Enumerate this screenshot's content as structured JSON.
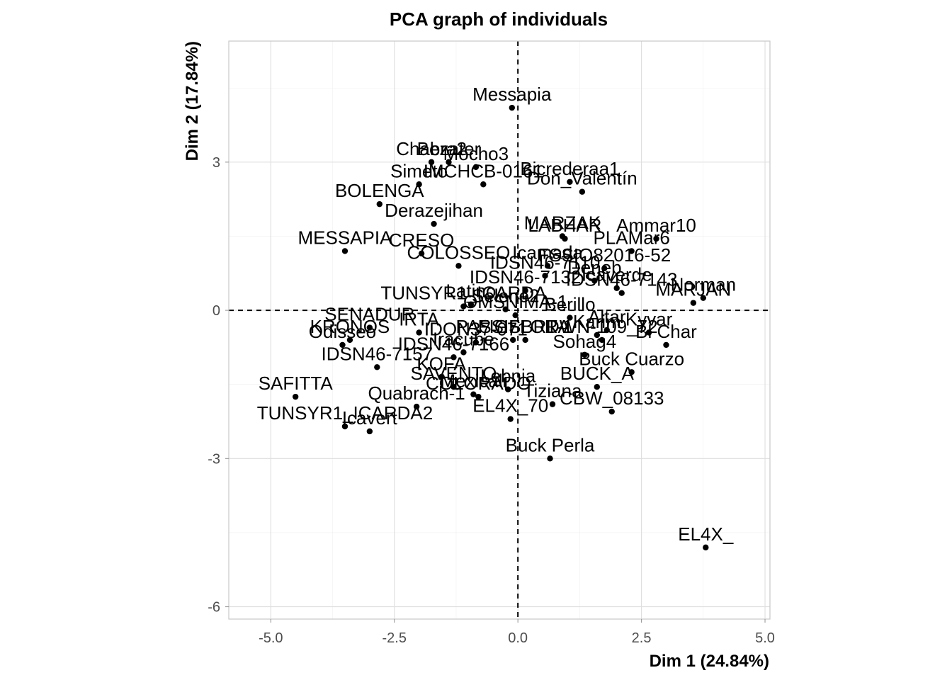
{
  "chart_data": {
    "type": "scatter",
    "title": "PCA graph of individuals",
    "xlabel": "Dim 1 (24.84%)",
    "ylabel": "Dim 2 (17.84%)",
    "xlim": [
      -5.85,
      5.1
    ],
    "ylim": [
      -6.25,
      5.45
    ],
    "x_ticks": [
      -5.0,
      -2.5,
      0.0,
      2.5,
      5.0
    ],
    "x_tick_labels": [
      "-5.0",
      "-2.5",
      "0.0",
      "2.5",
      "5.0"
    ],
    "y_ticks": [
      -6,
      -3,
      0,
      3
    ],
    "y_tick_labels": [
      "-6",
      "-3",
      "0",
      "3"
    ],
    "reference_lines": {
      "x": 0,
      "y": 0
    },
    "grid": true,
    "colors": {
      "points": "#000000",
      "labels": "#000000"
    },
    "points": [
      {
        "label": "Messapia",
        "x": -0.12,
        "y": 4.1
      },
      {
        "label": "Chabra2",
        "x": -1.75,
        "y": 3.0
      },
      {
        "label": "Bezater",
        "x": -1.4,
        "y": 3.0
      },
      {
        "label": "Simeto",
        "x": -2.0,
        "y": 2.55
      },
      {
        "label": "Mocho3",
        "x": -0.85,
        "y": 2.9
      },
      {
        "label": "IMCHCB-0161",
        "x": -0.7,
        "y": 2.55
      },
      {
        "label": "BOLENGA",
        "x": -2.8,
        "y": 2.15
      },
      {
        "label": "Derazejihan",
        "x": -1.7,
        "y": 1.75
      },
      {
        "label": "MESSAPIA",
        "x": -3.5,
        "y": 1.2
      },
      {
        "label": "CRESO",
        "x": -1.95,
        "y": 1.15
      },
      {
        "label": "COLOSSEO",
        "x": -1.2,
        "y": 0.9
      },
      {
        "label": "TUNSYR1_ICARDA",
        "x": -1.1,
        "y": 0.08
      },
      {
        "label": "Latino",
        "x": -0.95,
        "y": 0.12
      },
      {
        "label": "Selene2",
        "x": -0.25,
        "y": 0.02
      },
      {
        "label": "Bicrederaa1",
        "x": 1.05,
        "y": 2.6
      },
      {
        "label": "Don_Valentín",
        "x": 1.3,
        "y": 2.4
      },
      {
        "label": "MARZAK",
        "x": 0.9,
        "y": 1.5
      },
      {
        "label": "LABHAR",
        "x": 0.95,
        "y": 1.45
      },
      {
        "label": "Ammar10",
        "x": 2.8,
        "y": 1.45
      },
      {
        "label": "PLAMar6",
        "x": 2.3,
        "y": 1.2
      },
      {
        "label": "Icamada",
        "x": 0.6,
        "y": 0.9
      },
      {
        "label": "FSSIO82016-52",
        "x": 1.75,
        "y": 0.85
      },
      {
        "label": "IDSN46-7110",
        "x": 0.55,
        "y": 0.7
      },
      {
        "label": "Deneb",
        "x": 1.55,
        "y": 0.6
      },
      {
        "label": "Icaverde",
        "x": 2.0,
        "y": 0.45
      },
      {
        "label": "IDSN46-7132",
        "x": 0.15,
        "y": 0.4
      },
      {
        "label": "Norman",
        "x": 3.75,
        "y": 0.25
      },
      {
        "label": "MARJAN",
        "x": 3.55,
        "y": 0.15
      },
      {
        "label": "IDSN46-7143",
        "x": 2.1,
        "y": 0.35
      },
      {
        "label": "OMSNIMA-1",
        "x": -0.05,
        "y": -0.1
      },
      {
        "label": "Berillo",
        "x": 1.05,
        "y": -0.15
      },
      {
        "label": "Altar",
        "x": 1.8,
        "y": -0.4
      },
      {
        "label": "Karim",
        "x": 1.6,
        "y": -0.5
      },
      {
        "label": "Kyvar",
        "x": 2.65,
        "y": -0.45
      },
      {
        "label": "PASSIFLORA",
        "x": -0.1,
        "y": -0.6
      },
      {
        "label": "FIGSBRT-1",
        "x": 0.15,
        "y": -0.6
      },
      {
        "label": "DWN-109_72",
        "x": 1.7,
        "y": -0.6
      },
      {
        "label": "Sohag4",
        "x": 1.35,
        "y": -0.9
      },
      {
        "label": "Bl Char",
        "x": 3.0,
        "y": -0.7
      },
      {
        "label": "Buck Cuarzo",
        "x": 2.3,
        "y": -1.25
      },
      {
        "label": "BUCK_A",
        "x": 1.6,
        "y": -1.55
      },
      {
        "label": "Tiziana",
        "x": 0.7,
        "y": -1.9
      },
      {
        "label": "CBW_08133",
        "x": 1.9,
        "y": -2.05
      },
      {
        "label": "Buck Perla",
        "x": 0.65,
        "y": -3.0
      },
      {
        "label": "EL4X_",
        "x": 3.8,
        "y": -4.8
      },
      {
        "label": "SENADUR",
        "x": -3.0,
        "y": -0.35
      },
      {
        "label": "IRTA",
        "x": -2.0,
        "y": -0.45
      },
      {
        "label": "KRONOS",
        "x": -3.4,
        "y": -0.6
      },
      {
        "label": "Odisseo",
        "x": -3.55,
        "y": -0.7
      },
      {
        "label": "IDON37-071",
        "x": -0.85,
        "y": -0.65
      },
      {
        "label": "Iracube",
        "x": -1.1,
        "y": -0.85
      },
      {
        "label": "IDSN46-7166",
        "x": -1.3,
        "y": -0.95
      },
      {
        "label": "IDSN46-7157",
        "x": -2.85,
        "y": -1.15
      },
      {
        "label": "KOFA",
        "x": -1.55,
        "y": -1.35
      },
      {
        "label": "SAVENTO",
        "x": -1.3,
        "y": -1.55
      },
      {
        "label": "Mexicali",
        "x": -0.9,
        "y": -1.7
      },
      {
        "label": "COLORADO",
        "x": -0.8,
        "y": -1.75
      },
      {
        "label": "Lebnja",
        "x": -0.2,
        "y": -1.6
      },
      {
        "label": "SAFITTA",
        "x": -4.5,
        "y": -1.75
      },
      {
        "label": "Quabrach-1",
        "x": -2.05,
        "y": -1.95
      },
      {
        "label": "EL4X_70",
        "x": -0.15,
        "y": -2.2
      },
      {
        "label": "TUNSYR1_ICARDA2",
        "x": -3.5,
        "y": -2.35
      },
      {
        "label": "Icavert",
        "x": -3.0,
        "y": -2.45
      }
    ]
  }
}
